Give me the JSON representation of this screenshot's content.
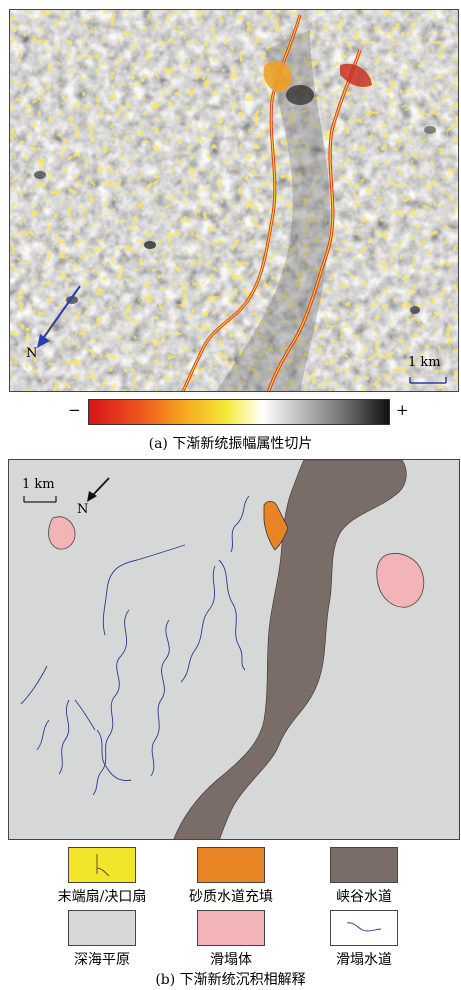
{
  "panel_a": {
    "north_label": "N",
    "scale_label": "1 km",
    "colorbar_minus": "−",
    "colorbar_plus": "+",
    "caption": "(a) 下渐新统振幅属性切片"
  },
  "panel_b": {
    "scale_label": "1 km",
    "north_label": "N",
    "caption": "(b) 下渐新统沉积相解释"
  },
  "legend": [
    {
      "label": "末端扇/决口扇",
      "color": "#f3e62a",
      "icon": "fan-symbol"
    },
    {
      "label": "砂质水道充填",
      "color": "#e98425",
      "icon": "none"
    },
    {
      "label": "峡谷水道",
      "color": "#7a6c66",
      "icon": "none"
    },
    {
      "label": "深海平原",
      "color": "#d6d8d8",
      "icon": "none"
    },
    {
      "label": "滑塌体",
      "color": "#f2b4b6",
      "icon": "none"
    },
    {
      "label": "滑塌水道",
      "color": "#ffffff",
      "icon": "blue-wavy-line"
    }
  ],
  "colors": {
    "canyon": "#7a6c66",
    "plain": "#d6d8d8",
    "slump": "#f2b4b6",
    "sand_fill": "#e98425",
    "slump_channel": "#2c3a8c",
    "north_arrow_a": "#2a3fb0"
  }
}
